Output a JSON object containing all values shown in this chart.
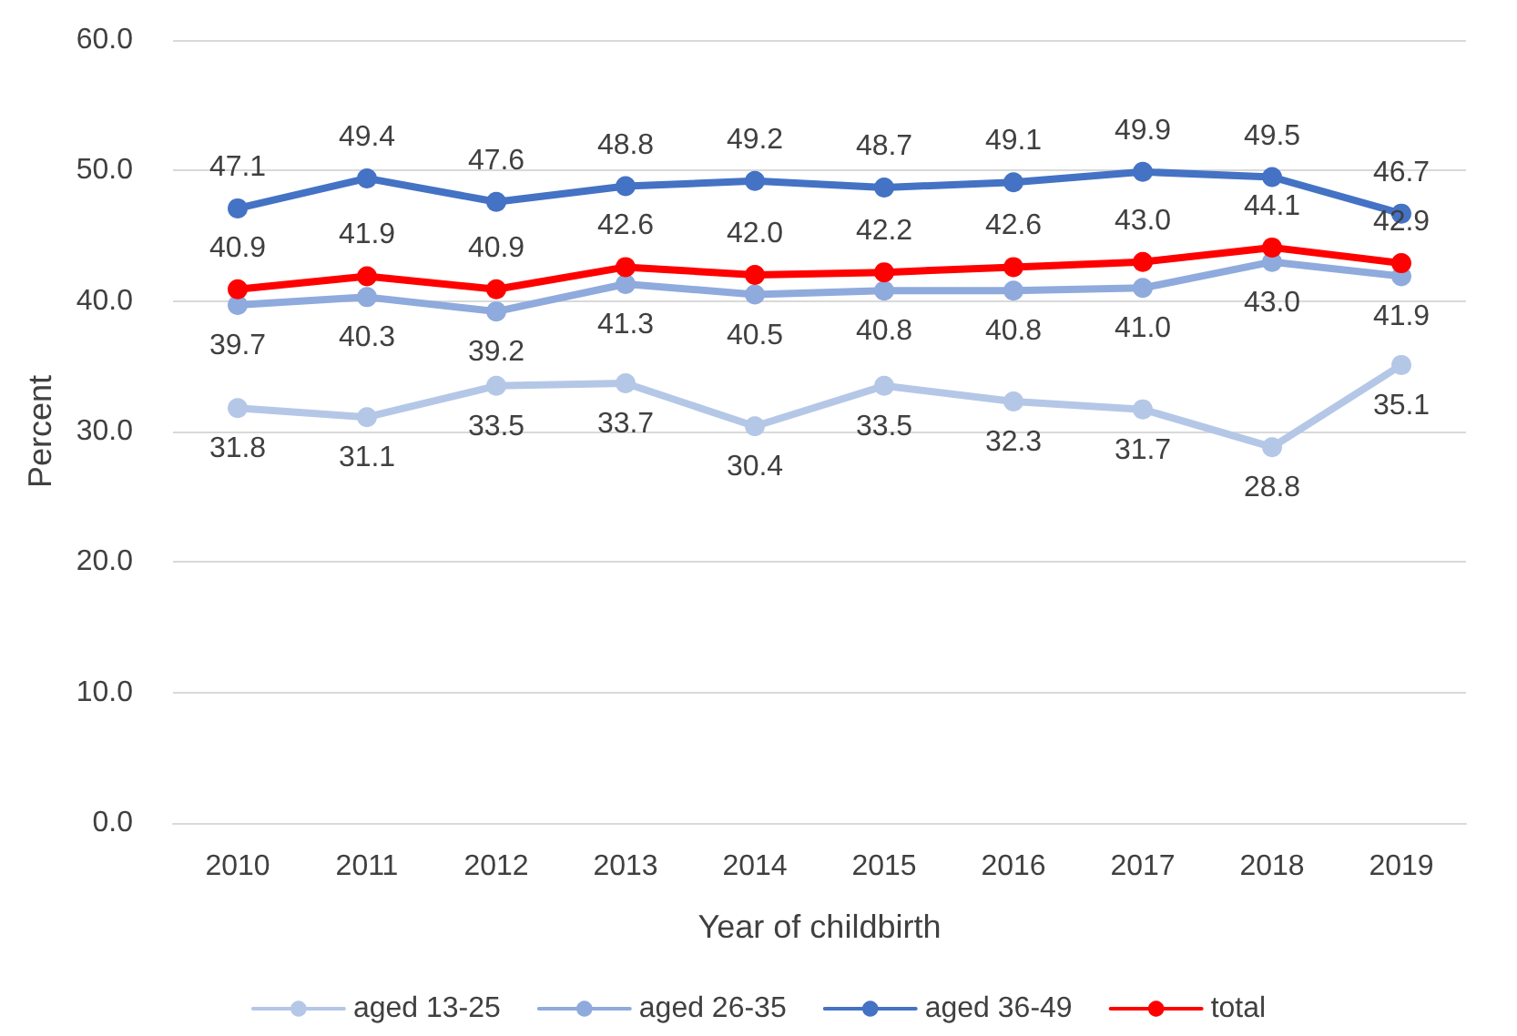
{
  "chart_data": {
    "type": "line",
    "xlabel": "Year of childbirth",
    "ylabel": "Percent",
    "categories": [
      "2010",
      "2011",
      "2012",
      "2013",
      "2014",
      "2015",
      "2016",
      "2017",
      "2018",
      "2019"
    ],
    "series": [
      {
        "name": "aged 13-25",
        "color": "#b4c7e7",
        "values": [
          31.8,
          31.1,
          33.5,
          33.7,
          30.4,
          33.5,
          32.3,
          31.7,
          28.8,
          35.1
        ],
        "value_labels": [
          "31.8",
          "31.1",
          "33.5",
          "33.7",
          "30.4",
          "33.5",
          "32.3",
          "31.7",
          "28.8",
          "35.1"
        ]
      },
      {
        "name": "aged 26-35",
        "color": "#8faadc",
        "values": [
          39.7,
          40.3,
          39.2,
          41.3,
          40.5,
          40.8,
          40.8,
          41.0,
          43.0,
          41.9
        ],
        "value_labels": [
          "39.7",
          "40.3",
          "39.2",
          "41.3",
          "40.5",
          "40.8",
          "40.8",
          "41.0",
          "43.0",
          "41.9"
        ]
      },
      {
        "name": "aged 36-49",
        "color": "#4472c4",
        "values": [
          47.1,
          49.4,
          47.6,
          48.8,
          49.2,
          48.7,
          49.1,
          49.9,
          49.5,
          46.7
        ],
        "value_labels": [
          "47.1",
          "49.4",
          "47.6",
          "48.8",
          "49.2",
          "48.7",
          "49.1",
          "49.9",
          "49.5",
          "46.7"
        ]
      },
      {
        "name": "total",
        "color": "#ff0000",
        "values": [
          40.9,
          41.9,
          40.9,
          42.6,
          42.0,
          42.2,
          42.6,
          43.0,
          44.1,
          42.9
        ],
        "value_labels": [
          "40.9",
          "41.9",
          "40.9",
          "42.6",
          "42.0",
          "42.2",
          "42.6",
          "43.0",
          "44.1",
          "42.9"
        ]
      }
    ],
    "ylim": [
      0,
      60
    ],
    "yticks": [
      {
        "value": 0,
        "label": "0.0"
      },
      {
        "value": 10,
        "label": "10.0"
      },
      {
        "value": 20,
        "label": "20.0"
      },
      {
        "value": 30,
        "label": "30.0"
      },
      {
        "value": 40,
        "label": "40.0"
      },
      {
        "value": 50,
        "label": "50.0"
      },
      {
        "value": 60,
        "label": "60.0"
      }
    ],
    "grid": "y",
    "legend": "bottom",
    "marker": "circle",
    "line_style": "solid"
  }
}
